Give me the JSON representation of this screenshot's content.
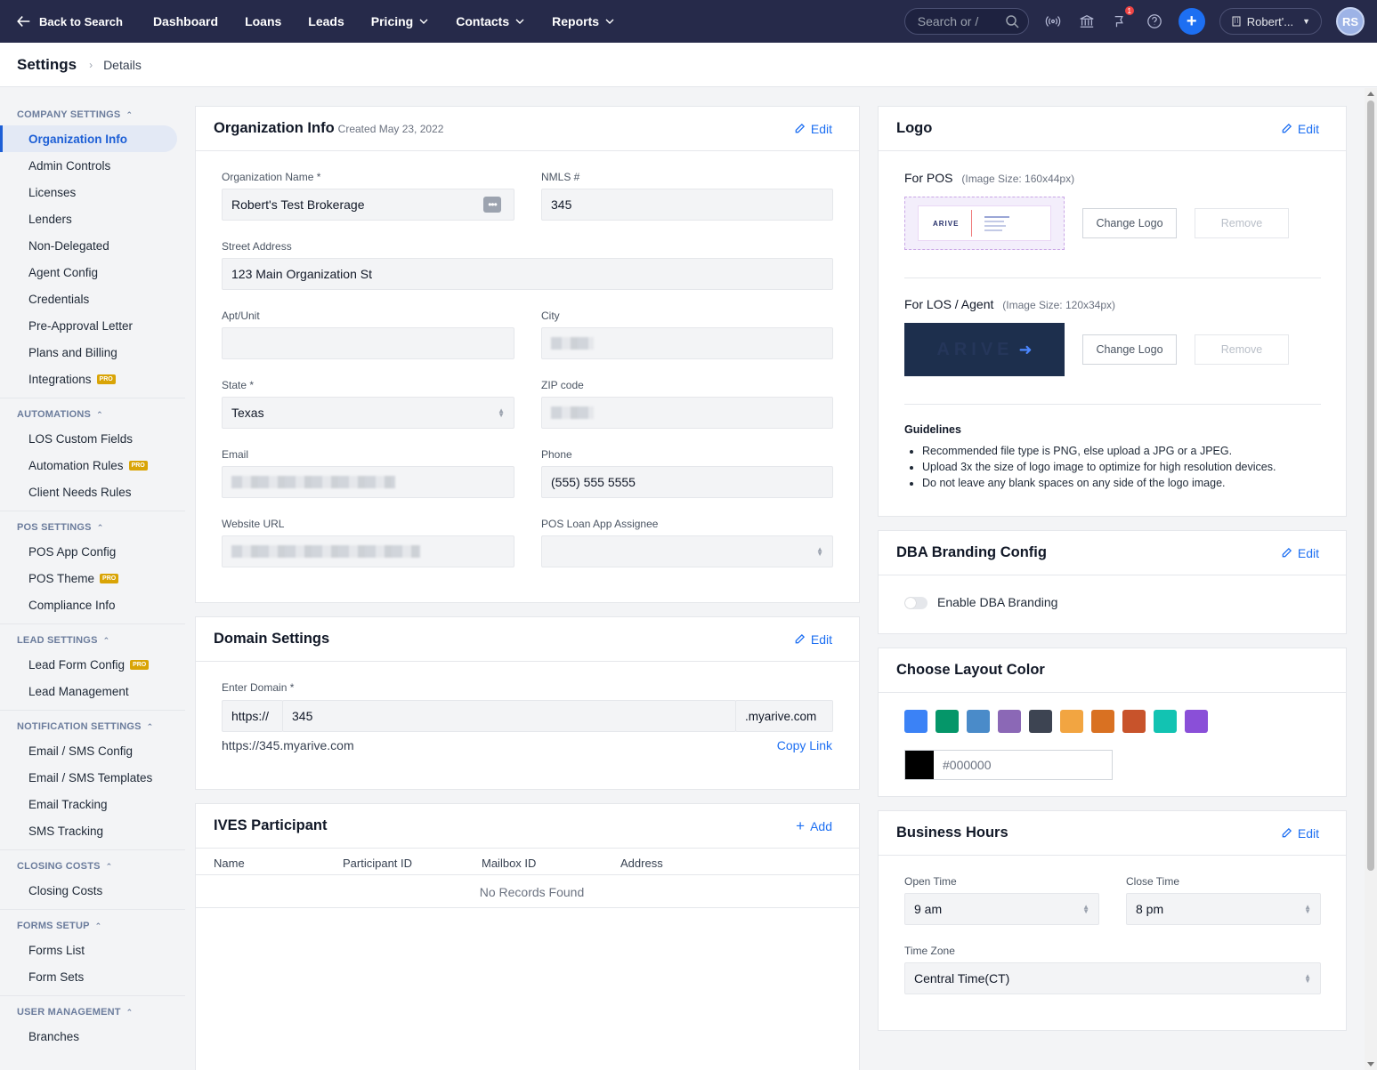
{
  "nav": {
    "back_label": "Back to Search",
    "links": [
      "Dashboard",
      "Loans",
      "Leads",
      "Pricing",
      "Contacts",
      "Reports"
    ],
    "search_placeholder": "Search or /",
    "notification_count": "1",
    "org_label": "Robert'...",
    "avatar_initials": "RS"
  },
  "breadcrumb": {
    "title": "Settings",
    "current": "Details"
  },
  "sidebar": {
    "groups": [
      {
        "heading": "COMPANY SETTINGS",
        "items": [
          {
            "label": "Organization Info",
            "active": true
          },
          {
            "label": "Admin Controls"
          },
          {
            "label": "Licenses"
          },
          {
            "label": "Lenders"
          },
          {
            "label": "Non-Delegated"
          },
          {
            "label": "Agent Config"
          },
          {
            "label": "Credentials"
          },
          {
            "label": "Pre-Approval Letter"
          },
          {
            "label": "Plans and Billing"
          },
          {
            "label": "Integrations",
            "pro": "PRO"
          }
        ]
      },
      {
        "heading": "AUTOMATIONS",
        "items": [
          {
            "label": "LOS Custom Fields"
          },
          {
            "label": "Automation Rules",
            "pro": "PRO"
          },
          {
            "label": "Client Needs Rules"
          }
        ]
      },
      {
        "heading": "POS SETTINGS",
        "items": [
          {
            "label": "POS App Config"
          },
          {
            "label": "POS Theme",
            "pro": "PRO"
          },
          {
            "label": "Compliance Info"
          }
        ]
      },
      {
        "heading": "LEAD SETTINGS",
        "items": [
          {
            "label": "Lead Form Config",
            "pro": "PRO"
          },
          {
            "label": "Lead Management"
          }
        ]
      },
      {
        "heading": "NOTIFICATION SETTINGS",
        "items": [
          {
            "label": "Email / SMS Config"
          },
          {
            "label": "Email / SMS Templates"
          },
          {
            "label": "Email Tracking"
          },
          {
            "label": "SMS Tracking"
          }
        ]
      },
      {
        "heading": "CLOSING COSTS",
        "items": [
          {
            "label": "Closing Costs"
          }
        ]
      },
      {
        "heading": "FORMS SETUP",
        "items": [
          {
            "label": "Forms List"
          },
          {
            "label": "Form Sets"
          }
        ]
      },
      {
        "heading": "USER MANAGEMENT",
        "items": [
          {
            "label": "Branches"
          }
        ]
      }
    ]
  },
  "org_info": {
    "title": "Organization Info",
    "created": "Created May 23, 2022",
    "edit": "Edit",
    "org_name_label": "Organization Name *",
    "org_name": "Robert's Test Brokerage",
    "nmls_label": "NMLS #",
    "nmls": "345",
    "street_label": "Street Address",
    "street": "123 Main Organization St",
    "apt_label": "Apt/Unit",
    "city_label": "City",
    "state_label": "State *",
    "state": "Texas",
    "zip_label": "ZIP code",
    "email_label": "Email",
    "phone_label": "Phone",
    "phone": "(555) 555 5555",
    "website_label": "Website URL",
    "assignee_label": "POS Loan App Assignee"
  },
  "domain": {
    "title": "Domain Settings",
    "edit": "Edit",
    "label": "Enter Domain *",
    "prefix": "https://",
    "value": "345",
    "suffix": ".myarive.com",
    "full_url": "https://345.myarive.com",
    "copy": "Copy Link"
  },
  "ives": {
    "title": "IVES Participant",
    "add": "Add",
    "columns": [
      "Name",
      "Participant ID",
      "Mailbox ID",
      "Address"
    ],
    "empty": "No Records Found"
  },
  "logo": {
    "title": "Logo",
    "edit": "Edit",
    "pos_label": "For POS",
    "pos_size": "(Image Size: 160x44px)",
    "los_label": "For LOS / Agent",
    "los_size": "(Image Size: 120x34px)",
    "change": "Change Logo",
    "remove": "Remove",
    "brand_text": "ARIVE",
    "guidelines_title": "Guidelines",
    "guidelines": [
      "Recommended file type is PNG, else upload a JPG or a JPEG.",
      "Upload 3x the size of logo image to optimize for high resolution devices.",
      "Do not leave any blank spaces on any side of the logo image."
    ]
  },
  "dba": {
    "title": "DBA Branding Config",
    "edit": "Edit",
    "toggle_label": "Enable DBA Branding",
    "enabled": false
  },
  "layout_color": {
    "title": "Choose Layout Color",
    "swatches": [
      "#3b82f6",
      "#059669",
      "#4a8bc9",
      "#8b68b6",
      "#3d4452",
      "#f2a541",
      "#d97122",
      "#c8532b",
      "#12c3b2",
      "#8a4fd8"
    ],
    "selected_hex": "#000000",
    "selected_color": "#000000"
  },
  "hours": {
    "title": "Business Hours",
    "edit": "Edit",
    "open_label": "Open Time",
    "open": "9 am",
    "close_label": "Close Time",
    "close": "8 pm",
    "tz_label": "Time Zone",
    "tz": "Central Time(CT)"
  }
}
